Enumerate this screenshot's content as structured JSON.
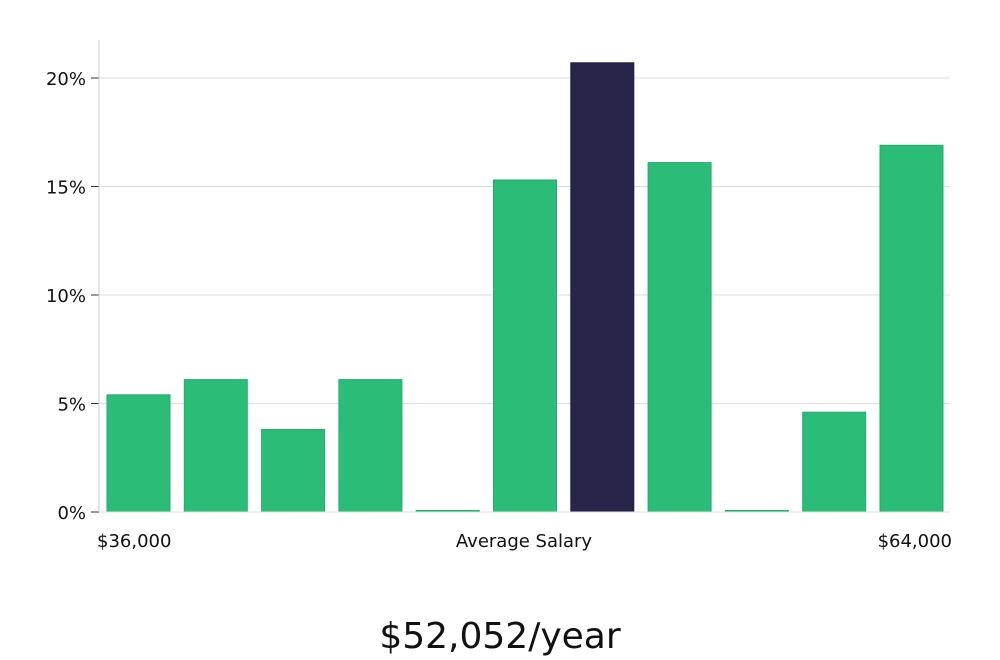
{
  "chart_data": {
    "type": "bar",
    "values": [
      5.4,
      6.1,
      3.8,
      6.1,
      0.0,
      15.3,
      20.7,
      16.1,
      0.0,
      4.6,
      16.9
    ],
    "highlight_index": 6,
    "ylim": [
      0,
      22
    ],
    "yticks": [
      0,
      5,
      10,
      15,
      20
    ],
    "ytick_labels": [
      "0%",
      "5%",
      "10%",
      "15%",
      "20%"
    ],
    "x_labels": {
      "left": "$36,000",
      "center": "Average Salary",
      "right": "$64,000"
    },
    "grid": true,
    "colors": {
      "bar": "#2bbd77",
      "highlight": "#28254a",
      "grid": "#dddddd",
      "axis": "#cccccc"
    }
  },
  "salary": {
    "text": "$52,052/year"
  }
}
